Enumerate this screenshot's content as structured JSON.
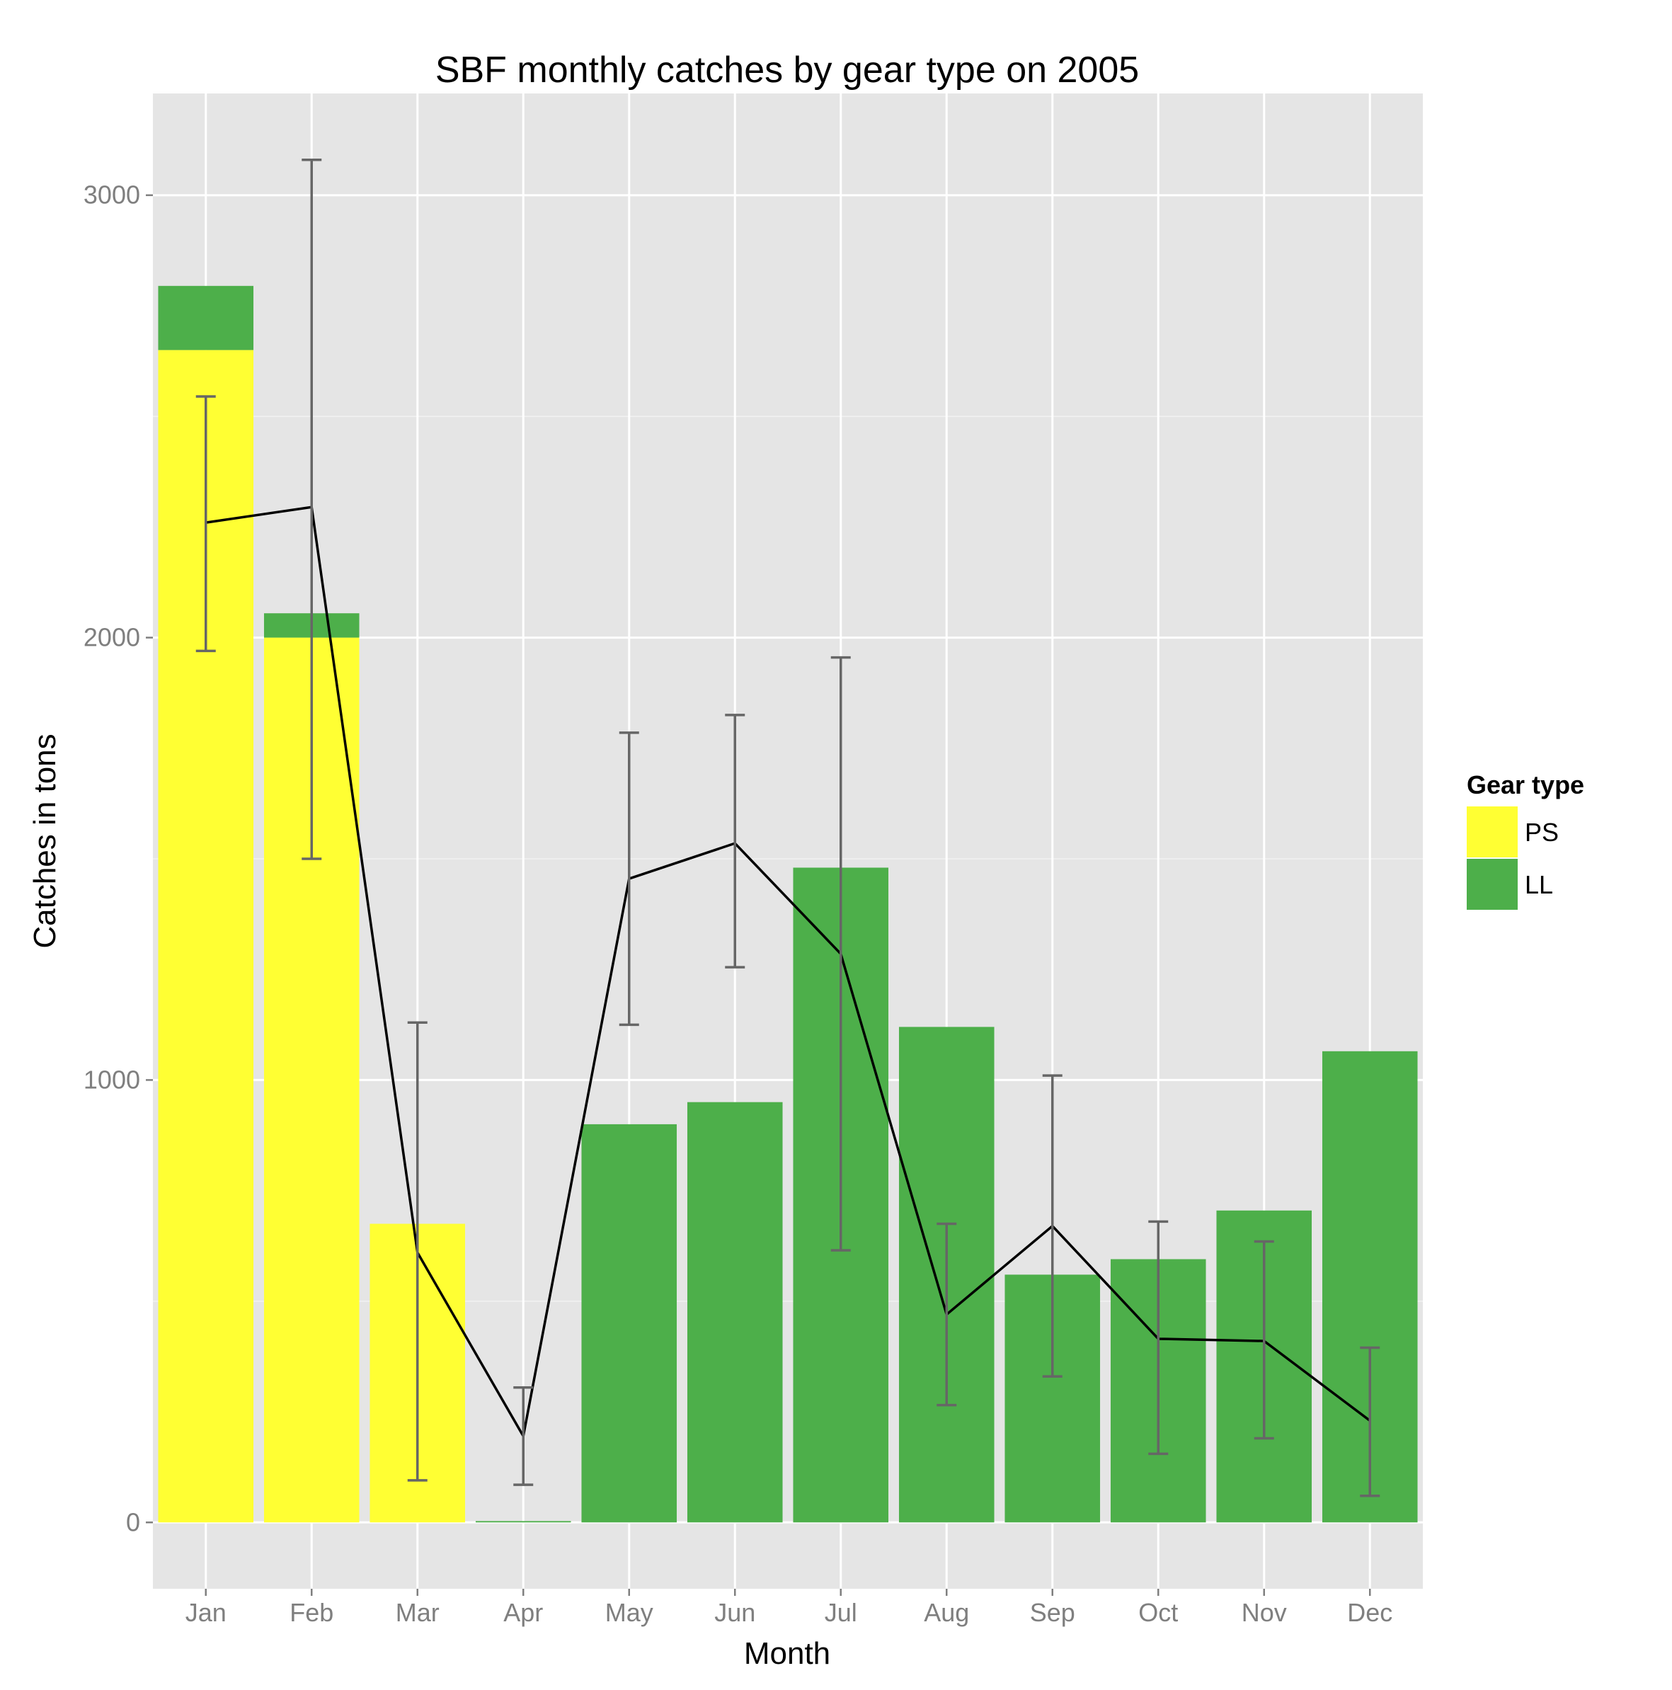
{
  "chart_data": {
    "type": "bar",
    "stacked": true,
    "title": "SBF monthly catches by gear type on 2005",
    "xlabel": "Month",
    "ylabel": "Catches in tons",
    "categories": [
      "Jan",
      "Feb",
      "Mar",
      "Apr",
      "May",
      "Jun",
      "Jul",
      "Aug",
      "Sep",
      "Oct",
      "Nov",
      "Dec"
    ],
    "series": [
      {
        "name": "PS",
        "color": "#ffff33",
        "values": [
          2650,
          2000,
          675,
          0,
          0,
          0,
          0,
          0,
          0,
          0,
          0,
          0
        ]
      },
      {
        "name": "LL",
        "color": "#4daf4a",
        "values": [
          145,
          55,
          0,
          3,
          900,
          950,
          1480,
          1120,
          560,
          595,
          705,
          1065
        ]
      }
    ],
    "line": {
      "color": "#000000",
      "values": [
        2260,
        2295,
        610,
        195,
        1455,
        1535,
        1285,
        470,
        670,
        415,
        410,
        230
      ]
    },
    "errorbars": {
      "color": "#666666",
      "lower": [
        1970,
        1500,
        95,
        85,
        1125,
        1255,
        615,
        265,
        330,
        155,
        190,
        60
      ],
      "upper": [
        2545,
        3080,
        1130,
        305,
        1785,
        1825,
        1955,
        675,
        1010,
        680,
        635,
        395
      ]
    },
    "ylim": [
      -150,
      3230
    ],
    "yticks": [
      0,
      1000,
      2000,
      3000
    ],
    "grid": true,
    "legend": {
      "title": "Gear type",
      "position": "right",
      "entries": [
        "PS",
        "LL"
      ]
    }
  }
}
